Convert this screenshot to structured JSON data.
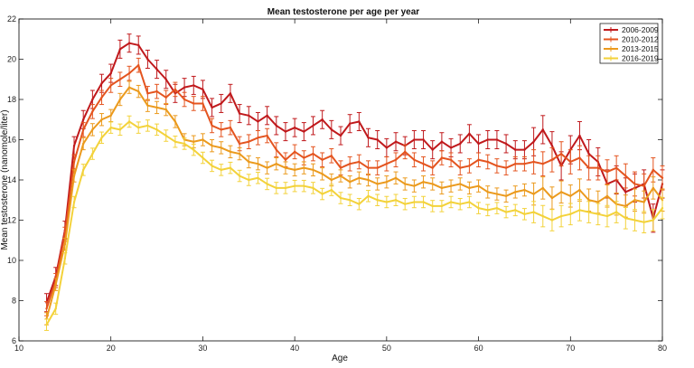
{
  "chart_data": {
    "type": "line",
    "title": "Mean testosterone per age per year",
    "xlabel": "Age",
    "ylabel": "Mean testosterone (nanomole/liter)",
    "xlim": [
      10,
      80
    ],
    "ylim": [
      6,
      22
    ],
    "x_ticks": [
      "10",
      "20",
      "30",
      "40",
      "50",
      "60",
      "70",
      "80"
    ],
    "y_ticks": [
      "6",
      "8",
      "10",
      "12",
      "14",
      "16",
      "18",
      "20",
      "22"
    ],
    "grid": false,
    "legend_position": "top-right",
    "error_bars": true,
    "x": [
      13,
      14,
      15,
      16,
      17,
      18,
      19,
      20,
      21,
      22,
      23,
      24,
      25,
      26,
      27,
      28,
      29,
      30,
      31,
      32,
      33,
      34,
      35,
      36,
      37,
      38,
      39,
      40,
      41,
      42,
      43,
      44,
      45,
      46,
      47,
      48,
      49,
      50,
      51,
      52,
      53,
      54,
      55,
      56,
      57,
      58,
      59,
      60,
      61,
      62,
      63,
      64,
      65,
      66,
      67,
      68,
      69,
      70,
      71,
      72,
      73,
      74,
      75,
      76,
      77,
      78,
      79,
      80
    ],
    "series": [
      {
        "name": "2006-2009",
        "color": "#c0191c",
        "values": [
          7.9,
          9.2,
          11.5,
          15.7,
          17.0,
          18.0,
          18.8,
          19.3,
          20.5,
          20.8,
          20.7,
          20.0,
          19.5,
          19.0,
          18.3,
          18.6,
          18.7,
          18.5,
          17.6,
          17.8,
          18.3,
          17.3,
          17.2,
          16.9,
          17.2,
          16.7,
          16.4,
          16.6,
          16.4,
          16.7,
          17.0,
          16.5,
          16.2,
          16.8,
          16.9,
          16.1,
          16.0,
          15.6,
          15.9,
          15.7,
          16.0,
          16.0,
          15.5,
          15.9,
          15.6,
          15.8,
          16.3,
          15.8,
          16.0,
          16.0,
          15.8,
          15.5,
          15.5,
          15.9,
          16.5,
          15.7,
          14.7,
          15.5,
          16.2,
          15.3,
          14.9,
          13.8,
          14.0,
          13.4,
          13.6,
          13.8,
          12.1,
          13.8
        ]
      },
      {
        "name": "2010-2012",
        "color": "#e4541f",
        "values": [
          7.6,
          9.0,
          11.3,
          14.9,
          16.5,
          17.4,
          18.1,
          18.7,
          19.0,
          19.3,
          19.7,
          18.3,
          18.4,
          18.1,
          18.5,
          18.0,
          17.8,
          17.8,
          16.7,
          16.5,
          16.6,
          15.8,
          15.9,
          16.1,
          16.2,
          15.5,
          15.0,
          15.4,
          15.1,
          15.3,
          15.0,
          15.2,
          14.6,
          14.8,
          14.9,
          14.6,
          14.6,
          14.8,
          15.0,
          15.4,
          15.0,
          14.8,
          14.6,
          15.1,
          15.0,
          14.6,
          14.7,
          15.0,
          14.9,
          14.7,
          14.6,
          14.8,
          14.8,
          14.9,
          14.8,
          15.0,
          15.3,
          14.9,
          15.1,
          14.6,
          14.6,
          14.4,
          14.6,
          14.2,
          13.8,
          13.7,
          14.5,
          14.1
        ]
      },
      {
        "name": "2013-2015",
        "color": "#eb9a1d",
        "values": [
          7.1,
          8.8,
          10.8,
          14.2,
          15.8,
          16.5,
          17.0,
          17.2,
          18.0,
          18.6,
          18.4,
          17.7,
          17.6,
          17.5,
          16.9,
          16.0,
          15.9,
          16.0,
          15.7,
          15.6,
          15.4,
          15.3,
          14.9,
          14.8,
          14.6,
          14.8,
          14.6,
          14.5,
          14.6,
          14.5,
          14.3,
          14.0,
          14.2,
          13.9,
          14.1,
          14.0,
          13.8,
          13.9,
          14.1,
          13.8,
          13.7,
          13.9,
          13.8,
          13.6,
          13.7,
          13.8,
          13.6,
          13.7,
          13.4,
          13.3,
          13.2,
          13.4,
          13.5,
          13.3,
          13.6,
          13.1,
          13.4,
          13.2,
          13.5,
          13.0,
          12.9,
          13.2,
          12.8,
          12.7,
          13.0,
          12.9,
          13.6,
          13.0
        ]
      },
      {
        "name": "2016-2019",
        "color": "#f3d23a",
        "values": [
          6.8,
          7.6,
          10.1,
          12.9,
          14.5,
          15.3,
          16.1,
          16.6,
          16.5,
          16.9,
          16.6,
          16.7,
          16.5,
          16.2,
          15.9,
          15.8,
          15.5,
          15.1,
          14.7,
          14.5,
          14.6,
          14.2,
          14.0,
          14.1,
          13.8,
          13.6,
          13.6,
          13.7,
          13.7,
          13.6,
          13.3,
          13.5,
          13.1,
          13.0,
          12.8,
          13.2,
          13.0,
          12.9,
          13.0,
          12.8,
          12.9,
          12.9,
          12.7,
          12.7,
          12.9,
          12.8,
          12.9,
          12.6,
          12.5,
          12.6,
          12.4,
          12.5,
          12.3,
          12.4,
          12.2,
          12.0,
          12.2,
          12.3,
          12.5,
          12.4,
          12.3,
          12.2,
          12.4,
          12.1,
          12.0,
          11.9,
          12.0,
          12.6
        ]
      }
    ],
    "legend": [
      "2006-2009",
      "2010-2012",
      "2013-2015",
      "2016-2019"
    ]
  }
}
